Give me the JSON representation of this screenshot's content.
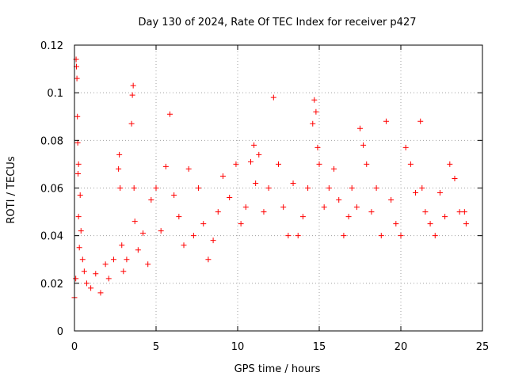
{
  "chart_data": {
    "type": "scatter",
    "title": "Day 130 of 2024, Rate Of TEC Index for receiver p427",
    "xlabel": "GPS time / hours",
    "ylabel": "ROTI / TECUs",
    "xlim": [
      0,
      25
    ],
    "ylim": [
      0,
      0.12
    ],
    "xticks": [
      "0",
      "5",
      "10",
      "15",
      "20",
      "25"
    ],
    "yticks": [
      "0",
      "0.02",
      "0.04",
      "0.06",
      "0.08",
      "0.1",
      "0.12"
    ],
    "grid": true,
    "marker": "+",
    "color": "#ff0000",
    "series": [
      {
        "x": [
          0.0,
          0.08,
          0.1,
          0.12,
          0.15,
          0.18,
          0.2,
          0.22,
          0.25,
          0.25,
          0.3,
          0.35,
          0.4,
          0.5,
          0.6,
          0.75,
          1.0,
          1.3,
          1.6,
          1.9,
          2.1,
          2.4,
          2.7,
          2.75,
          2.8,
          2.9,
          3.0,
          3.2,
          3.5,
          3.55,
          3.6,
          3.65,
          3.7,
          3.9,
          4.2,
          4.5,
          4.7,
          5.0,
          5.3,
          5.6,
          5.85,
          6.1,
          6.4,
          6.7,
          7.0,
          7.3,
          7.6,
          7.9,
          8.2,
          8.5,
          8.8,
          9.1,
          9.5,
          9.9,
          10.2,
          10.5,
          10.8,
          11.0,
          11.1,
          11.3,
          11.6,
          11.9,
          12.2,
          12.5,
          12.8,
          13.1,
          13.4,
          13.7,
          14.0,
          14.3,
          14.6,
          14.7,
          14.8,
          14.9,
          15.0,
          15.3,
          15.6,
          15.9,
          16.2,
          16.5,
          16.8,
          17.0,
          17.3,
          17.5,
          17.7,
          17.9,
          18.2,
          18.5,
          18.8,
          19.1,
          19.4,
          19.7,
          20.0,
          20.3,
          20.6,
          20.9,
          21.2,
          21.3,
          21.5,
          21.8,
          22.1,
          22.4,
          22.7,
          23.0,
          23.3,
          23.6,
          23.9,
          24.0
        ],
        "y": [
          0.014,
          0.022,
          0.114,
          0.111,
          0.106,
          0.09,
          0.079,
          0.066,
          0.07,
          0.048,
          0.035,
          0.057,
          0.042,
          0.03,
          0.025,
          0.02,
          0.018,
          0.024,
          0.016,
          0.028,
          0.022,
          0.03,
          0.068,
          0.074,
          0.06,
          0.036,
          0.025,
          0.03,
          0.087,
          0.099,
          0.103,
          0.06,
          0.046,
          0.034,
          0.041,
          0.028,
          0.055,
          0.06,
          0.042,
          0.069,
          0.091,
          0.057,
          0.048,
          0.036,
          0.068,
          0.04,
          0.06,
          0.045,
          0.03,
          0.038,
          0.05,
          0.065,
          0.056,
          0.07,
          0.045,
          0.052,
          0.071,
          0.078,
          0.062,
          0.074,
          0.05,
          0.06,
          0.098,
          0.07,
          0.052,
          0.04,
          0.062,
          0.04,
          0.048,
          0.06,
          0.087,
          0.097,
          0.092,
          0.077,
          0.07,
          0.052,
          0.06,
          0.068,
          0.055,
          0.04,
          0.048,
          0.06,
          0.052,
          0.085,
          0.078,
          0.07,
          0.05,
          0.06,
          0.04,
          0.088,
          0.055,
          0.045,
          0.04,
          0.077,
          0.07,
          0.058,
          0.088,
          0.06,
          0.05,
          0.045,
          0.04,
          0.058,
          0.048,
          0.07,
          0.064,
          0.05,
          0.05,
          0.045
        ]
      }
    ]
  }
}
